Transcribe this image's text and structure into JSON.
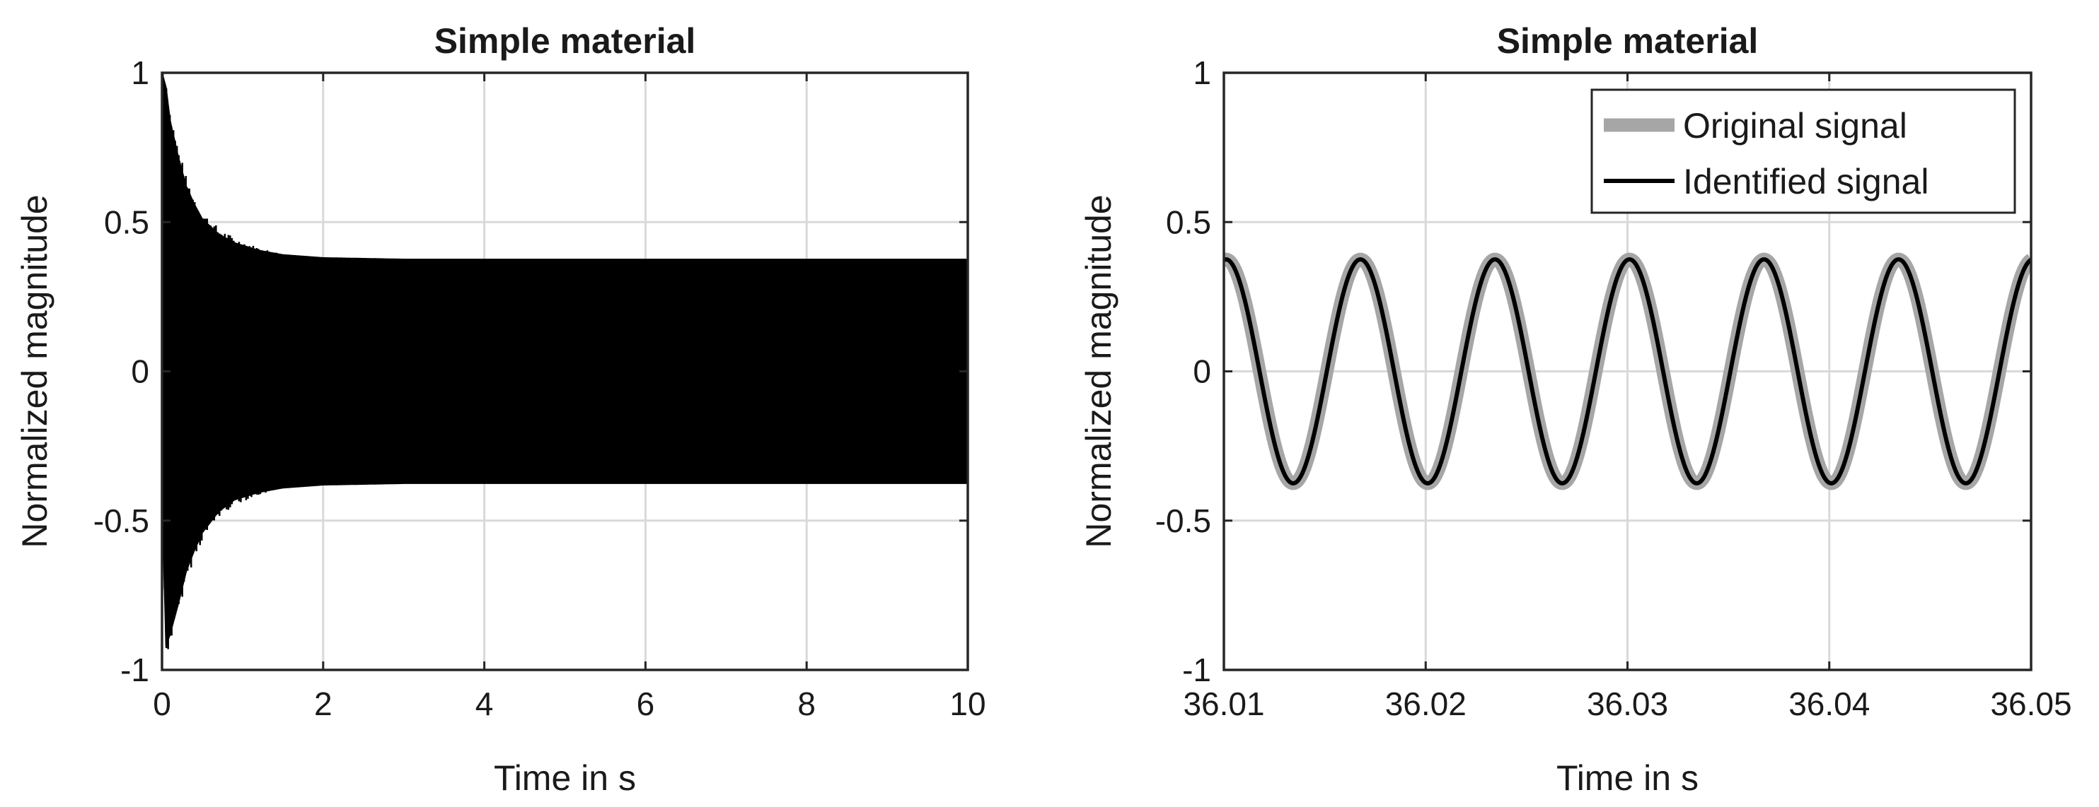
{
  "chart_data": [
    {
      "type": "line",
      "title": "Simple material",
      "xlabel": "Time in s",
      "ylabel": "Normalized magnitude",
      "xlim": [
        0,
        10
      ],
      "ylim": [
        -1,
        1
      ],
      "xticks": [
        0,
        2,
        4,
        6,
        8,
        10
      ],
      "xtick_labels": [
        "0",
        "2",
        "4",
        "6",
        "8",
        "10"
      ],
      "yticks": [
        -1,
        -0.5,
        0,
        0.5,
        1
      ],
      "ytick_labels": [
        "-1",
        "-0.5",
        "0",
        "0.5",
        "1"
      ],
      "grid": true,
      "series": [
        {
          "color": "#000000",
          "style": "dense oscillation",
          "envelope": {
            "time": [
              0,
              0.05,
              0.1,
              0.2,
              0.3,
              0.4,
              0.5,
              0.7,
              0.9,
              1.2,
              1.5,
              2,
              3,
              5,
              7.5,
              10
            ],
            "upper": [
              1.0,
              0.95,
              0.84,
              0.72,
              0.62,
              0.56,
              0.51,
              0.46,
              0.43,
              0.405,
              0.39,
              0.38,
              0.375,
              0.375,
              0.375,
              0.375
            ],
            "lower": [
              -0.4,
              -0.92,
              -0.88,
              -0.78,
              -0.67,
              -0.6,
              -0.54,
              -0.47,
              -0.43,
              -0.405,
              -0.39,
              -0.38,
              -0.375,
              -0.375,
              -0.375,
              -0.375
            ]
          },
          "steady_state_amplitude": 0.375
        }
      ]
    },
    {
      "type": "line",
      "title": "Simple material",
      "xlabel": "Time in s",
      "ylabel": "Normalized magnitude",
      "xlim": [
        36.01,
        36.05
      ],
      "ylim": [
        -1,
        1
      ],
      "xticks": [
        36.01,
        36.02,
        36.03,
        36.04,
        36.05
      ],
      "xtick_labels": [
        "36.01",
        "36.02",
        "36.03",
        "36.04",
        "36.05"
      ],
      "yticks": [
        -1,
        -0.5,
        0,
        0.5,
        1
      ],
      "ytick_labels": [
        "-1",
        "-0.5",
        "0",
        "0.5",
        "1"
      ],
      "grid": true,
      "legend": {
        "location": "top-right"
      },
      "series": [
        {
          "name": "Original signal",
          "color": "#a6a6a6",
          "function": "sinusoid",
          "amplitude": 0.375,
          "frequency_hz": 150,
          "peak_time": 36.0101
        },
        {
          "name": "Identified signal",
          "color": "#000000",
          "function": "sinusoid",
          "amplitude": 0.375,
          "frequency_hz": 150,
          "peak_time": 36.0101
        }
      ]
    }
  ]
}
